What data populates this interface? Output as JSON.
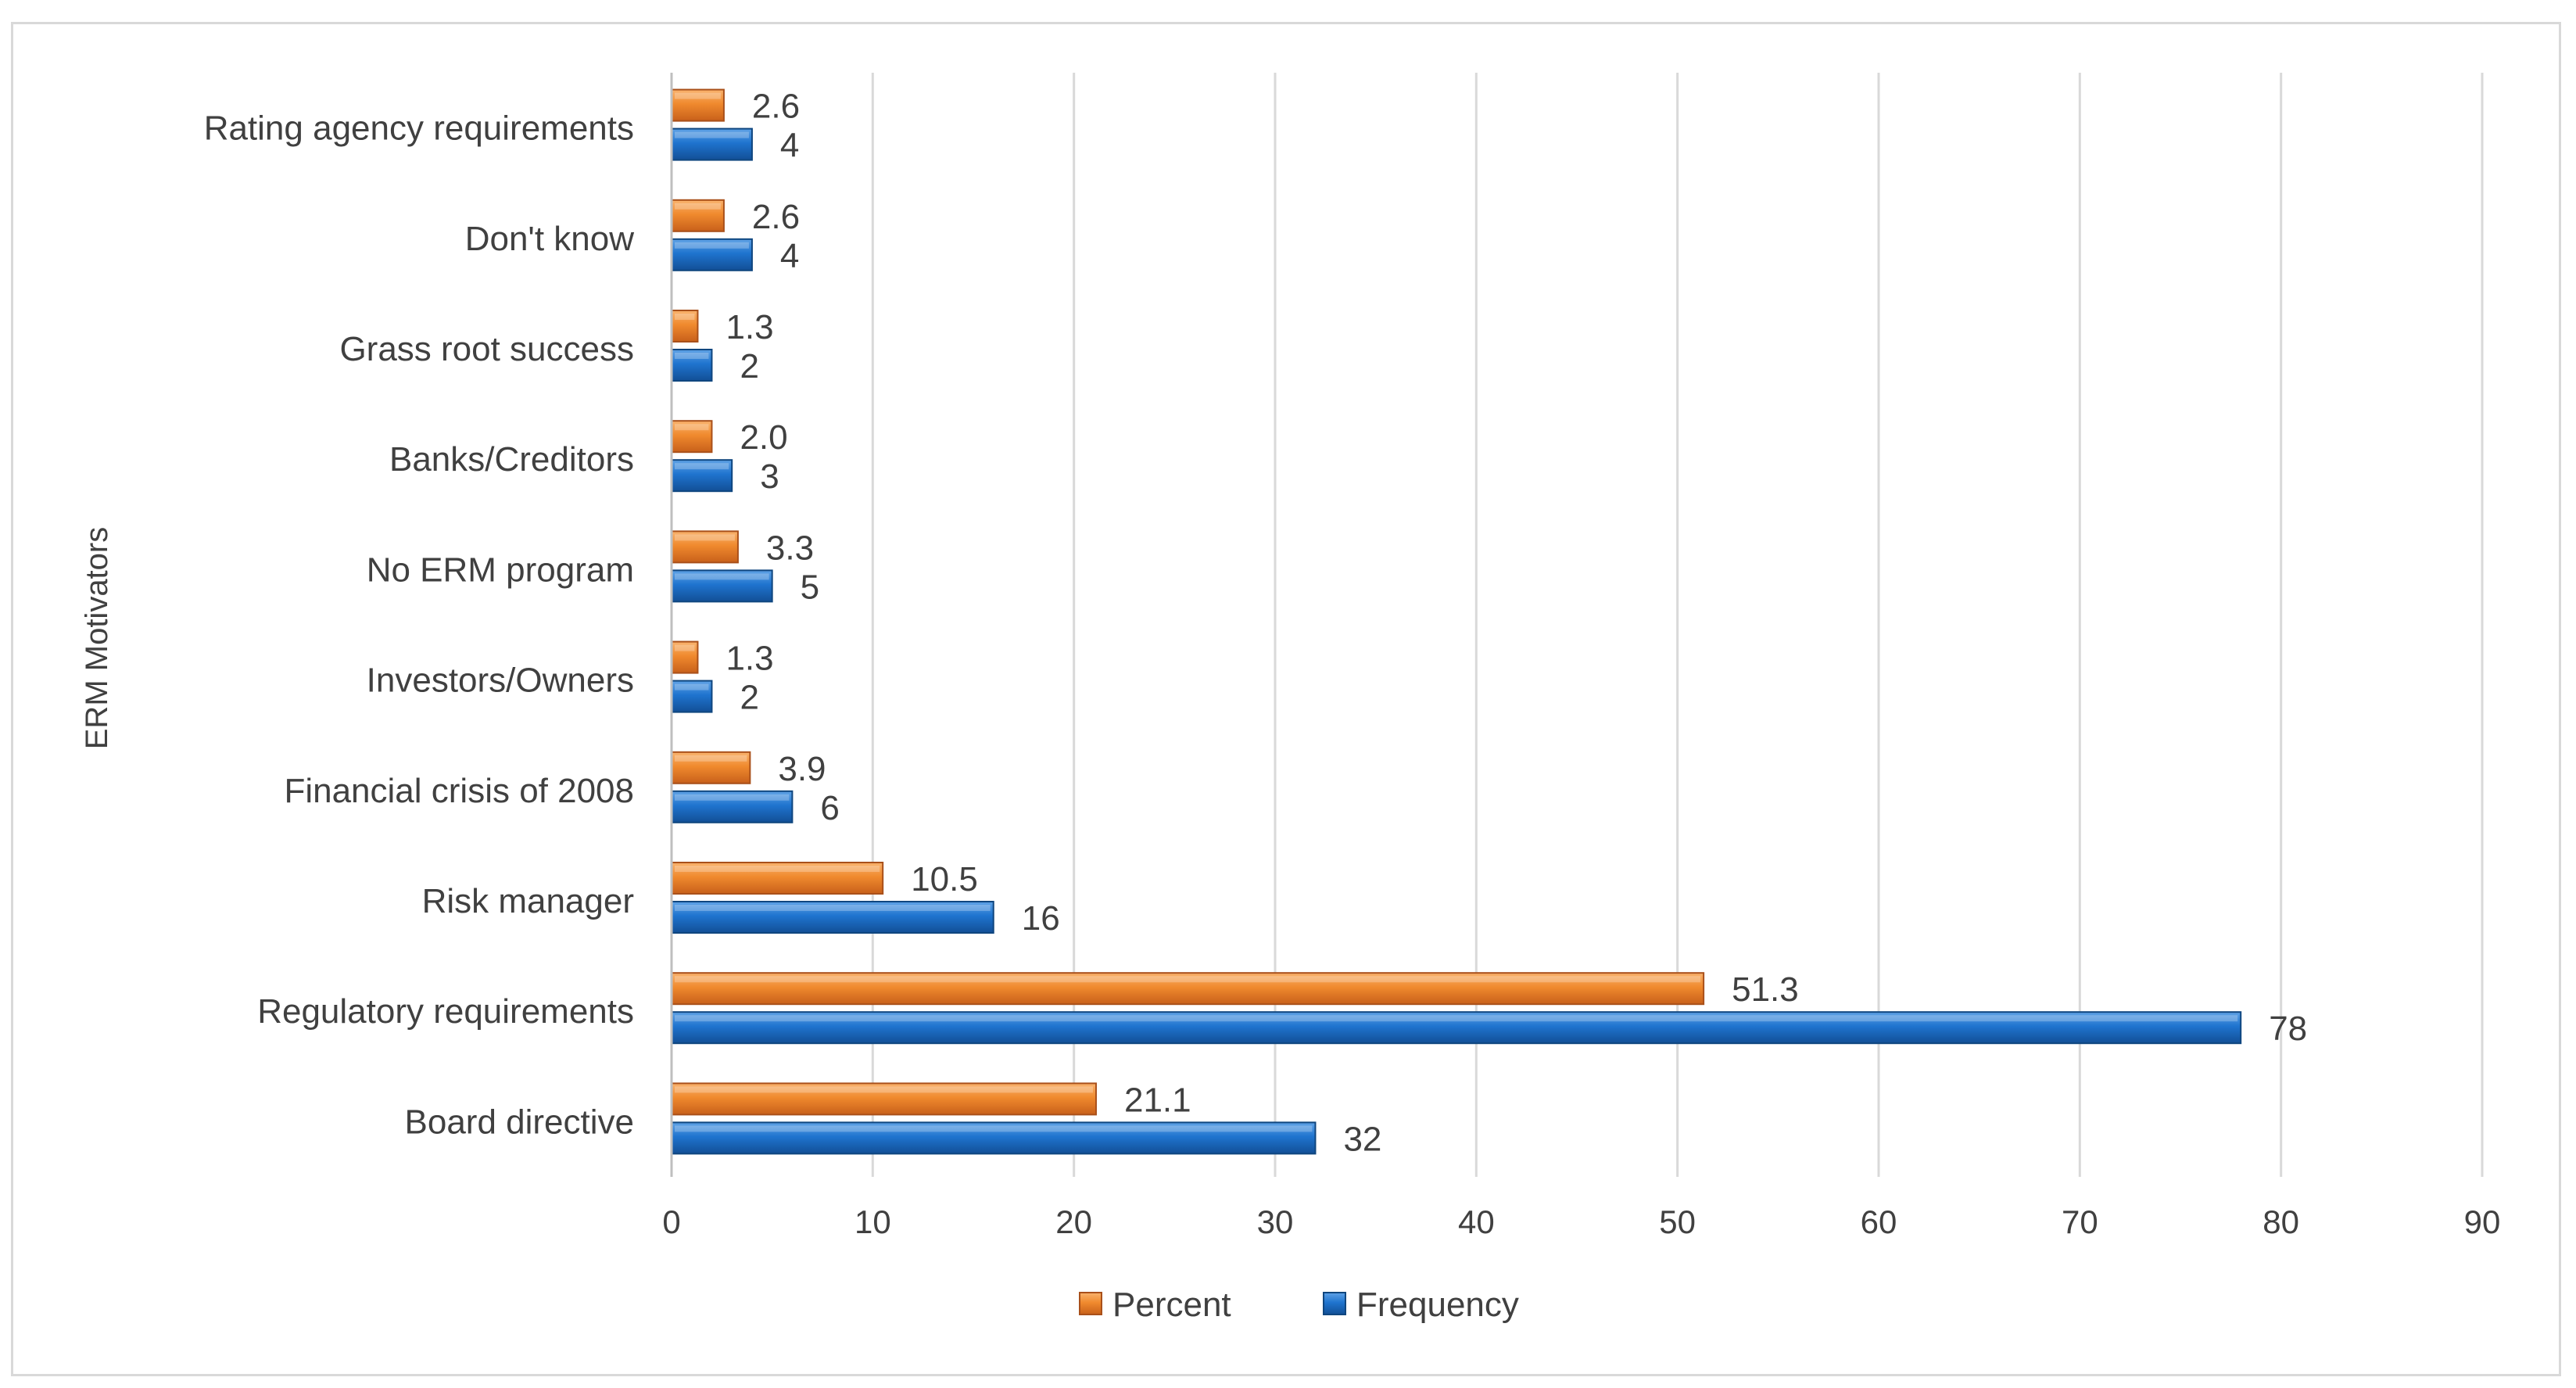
{
  "chart_data": {
    "type": "bar",
    "orientation": "horizontal",
    "title": "",
    "xlabel": "",
    "ylabel": "ERM Motivators",
    "xlim": [
      0,
      90
    ],
    "x_ticks": [
      0,
      10,
      20,
      30,
      40,
      50,
      60,
      70,
      80,
      90
    ],
    "grid": true,
    "legend_position": "bottom",
    "categories": [
      "Board directive",
      "Regulatory requirements",
      "Risk manager",
      "Financial crisis of 2008",
      "Investors/Owners",
      "No ERM program",
      "Banks/Creditors",
      "Grass root success",
      "Don't know",
      "Rating agency requirements"
    ],
    "series": [
      {
        "name": "Percent",
        "color": "#ED7D31",
        "values": [
          21.1,
          51.3,
          10.5,
          3.9,
          1.3,
          3.3,
          2.0,
          1.3,
          2.6,
          2.6
        ],
        "labels": [
          "21.1",
          "51.3",
          "10.5",
          "3.9",
          "1.3",
          "3.3",
          "2.0",
          "1.3",
          "2.6",
          "2.6"
        ]
      },
      {
        "name": "Frequency",
        "color": "#1F6FC8",
        "values": [
          32,
          78,
          16,
          6,
          2,
          5,
          3,
          2,
          4,
          4
        ],
        "labels": [
          "32",
          "78",
          "16",
          "6",
          "2",
          "5",
          "3",
          "2",
          "4",
          "4"
        ]
      }
    ]
  }
}
